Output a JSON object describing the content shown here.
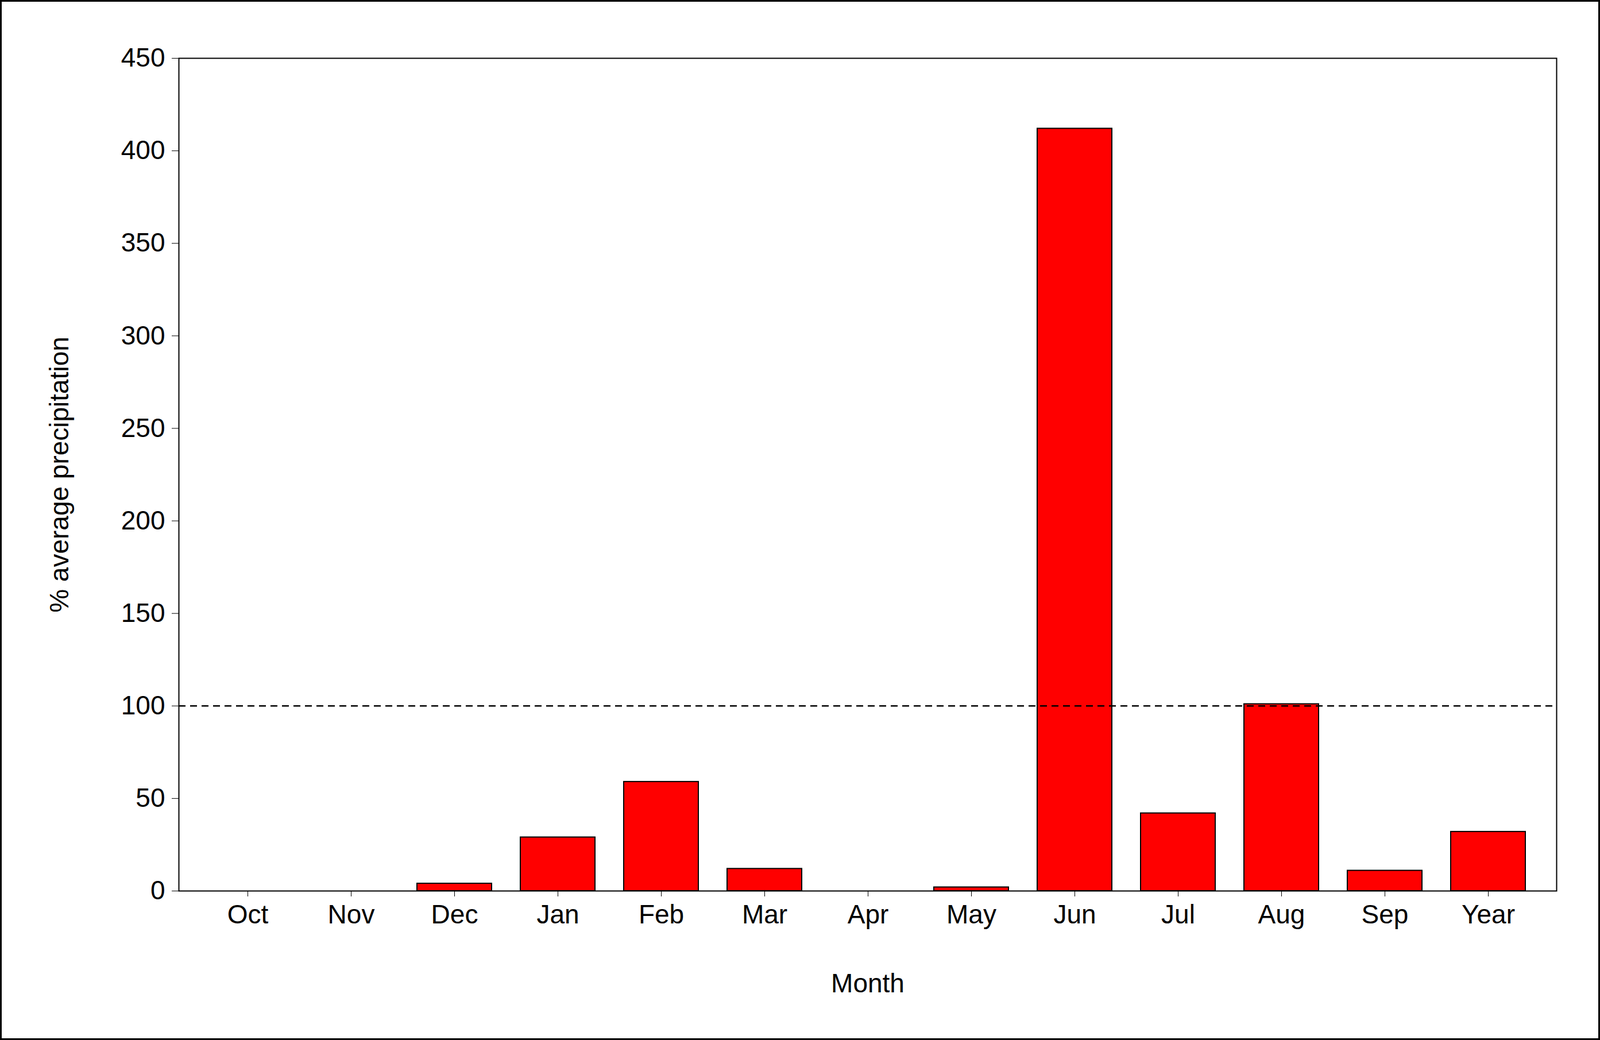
{
  "chart_data": {
    "type": "bar",
    "x_label": "Month",
    "y_label": "% average precipitation",
    "categories": [
      "Oct",
      "Nov",
      "Dec",
      "Jan",
      "Feb",
      "Mar",
      "Apr",
      "May",
      "Jun",
      "Jul",
      "Aug",
      "Sep",
      "Year"
    ],
    "values": [
      0,
      0,
      4,
      29,
      59,
      12,
      0,
      2,
      412,
      42,
      101,
      11,
      32
    ],
    "color": "#ff0000",
    "ylim": [
      0,
      450
    ],
    "yticks": [
      0,
      50,
      100,
      150,
      200,
      250,
      300,
      350,
      400,
      450
    ],
    "reference_line": 100,
    "grid": false
  }
}
